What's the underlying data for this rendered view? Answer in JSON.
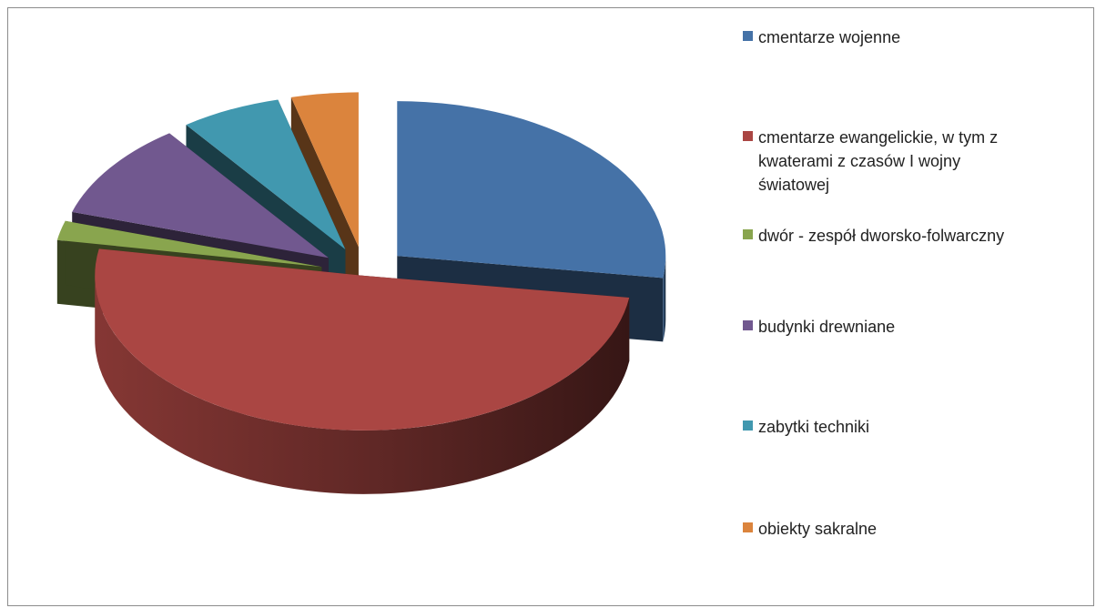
{
  "chart_data": {
    "type": "pie",
    "title": "",
    "style": "3d-exploded",
    "legend_position": "right",
    "slices": [
      {
        "label": "cmentarze wojenne",
        "value": 27,
        "color": "#4572A7"
      },
      {
        "label": " cmentarze ewangelickie, w tym z kwaterami z czasów I wojny światowej",
        "value": 50,
        "color": "#AA4643"
      },
      {
        "label": "dwór - zespół dworsko-folwarczny",
        "value": 2,
        "color": "#89A54E"
      },
      {
        "label": "budynki drewniane",
        "value": 10,
        "color": "#71588F"
      },
      {
        "label": "zabytki techniki",
        "value": 6,
        "color": "#4198AF"
      },
      {
        "label": "obiekty sakralne",
        "value": 4,
        "color": "#DB843D"
      }
    ]
  }
}
